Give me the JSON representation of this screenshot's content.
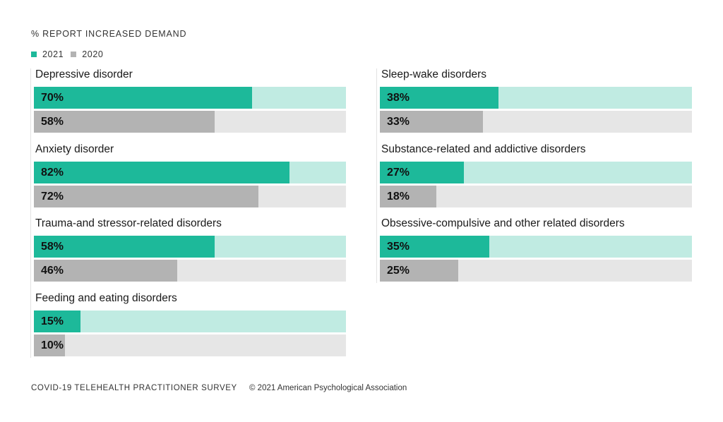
{
  "chart_data": {
    "type": "bar",
    "orientation": "horizontal",
    "title": "% REPORT INCREASED DEMAND",
    "series": [
      {
        "name": "2021",
        "color": "#1db99a",
        "track_color": "#c0ebe2"
      },
      {
        "name": "2020",
        "color": "#b3b3b3",
        "track_color": "#e6e6e6"
      }
    ],
    "xlim": [
      0,
      100
    ],
    "categories": [
      {
        "label": "Depressive disorder",
        "values": [
          70,
          58
        ],
        "value_labels": [
          "70%",
          "58%"
        ]
      },
      {
        "label": "Anxiety disorder",
        "values": [
          82,
          72
        ],
        "value_labels": [
          "82%",
          "72%"
        ]
      },
      {
        "label": "Trauma-and stressor-related disorders",
        "values": [
          58,
          46
        ],
        "value_labels": [
          "58%",
          "46%"
        ]
      },
      {
        "label": "Feeding and eating disorders",
        "values": [
          15,
          10
        ],
        "value_labels": [
          "15%",
          "10%"
        ]
      },
      {
        "label": "Sleep-wake disorders",
        "values": [
          38,
          33
        ],
        "value_labels": [
          "38%",
          "33%"
        ]
      },
      {
        "label": "Substance-related and addictive disorders",
        "values": [
          27,
          18
        ],
        "value_labels": [
          "27%",
          "18%"
        ]
      },
      {
        "label": "Obsessive-compulsive and other related disorders",
        "values": [
          35,
          25
        ],
        "value_labels": [
          "35%",
          "25%"
        ]
      }
    ]
  },
  "footer": {
    "survey": "COVID-19 TELEHEALTH PRACTITIONER SURVEY",
    "copyright": "© 2021 American Psychological Association"
  }
}
